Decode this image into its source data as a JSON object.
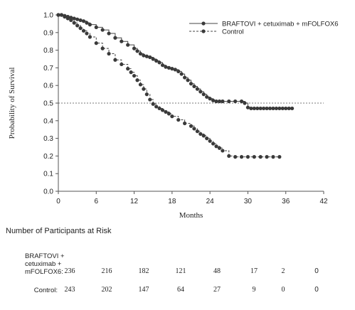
{
  "chart_data": {
    "type": "line",
    "subtype": "kaplan-meier",
    "xlabel": "Months",
    "ylabel": "Probability of Survival",
    "xlim": [
      0,
      42
    ],
    "ylim": [
      0,
      1.0
    ],
    "xticks": [
      0,
      6,
      12,
      18,
      24,
      30,
      36,
      42
    ],
    "yticks": [
      0.0,
      0.1,
      0.2,
      0.3,
      0.4,
      0.5,
      0.6,
      0.7,
      0.8,
      0.9,
      1.0
    ],
    "reference_line": 0.5,
    "legend_position": "top-right",
    "series": [
      {
        "name": "BRAFTOVI + cetuximab + mFOLFOX6",
        "color": "#444444",
        "line_style": "solid",
        "x": [
          0,
          0.5,
          1,
          1.5,
          2,
          2.5,
          3,
          3.5,
          4,
          4.5,
          5,
          6,
          7,
          8,
          9,
          10,
          11,
          12,
          12.5,
          13,
          13.5,
          14,
          14.5,
          15,
          15.5,
          16,
          16.5,
          17,
          17.5,
          18,
          18.5,
          19,
          19.5,
          20,
          20.5,
          21,
          21.5,
          22,
          22.5,
          23,
          23.5,
          24,
          24.5,
          25,
          25.5,
          26,
          27,
          28,
          29,
          29.5,
          30,
          30.5,
          31,
          31.5,
          32,
          32.5,
          33,
          33.5,
          34,
          34.5,
          35,
          35.5,
          36,
          36.5,
          37
        ],
        "y": [
          1.0,
          1.0,
          0.995,
          0.99,
          0.985,
          0.98,
          0.975,
          0.97,
          0.965,
          0.955,
          0.945,
          0.93,
          0.915,
          0.895,
          0.87,
          0.85,
          0.83,
          0.81,
          0.795,
          0.78,
          0.77,
          0.765,
          0.76,
          0.75,
          0.74,
          0.73,
          0.715,
          0.705,
          0.7,
          0.695,
          0.69,
          0.68,
          0.665,
          0.645,
          0.63,
          0.61,
          0.595,
          0.58,
          0.565,
          0.55,
          0.535,
          0.525,
          0.515,
          0.51,
          0.51,
          0.51,
          0.51,
          0.51,
          0.51,
          0.5,
          0.475,
          0.47,
          0.47,
          0.47,
          0.47,
          0.47,
          0.47,
          0.47,
          0.47,
          0.47,
          0.47,
          0.47,
          0.47,
          0.47,
          0.47
        ]
      },
      {
        "name": "Control",
        "color": "#444444",
        "line_style": "dashed",
        "x": [
          0,
          0.5,
          1,
          1.5,
          2,
          2.5,
          3,
          3.5,
          4,
          4.5,
          5,
          6,
          7,
          8,
          9,
          10,
          11,
          11.5,
          12,
          12.5,
          13,
          13.5,
          14,
          14.5,
          15,
          15.5,
          16,
          16.5,
          17,
          17.5,
          18,
          19,
          20,
          21,
          21.5,
          22,
          22.5,
          23,
          23.5,
          24,
          24.5,
          25,
          25.5,
          26,
          27,
          28,
          29,
          30,
          31,
          32,
          33,
          34,
          35
        ],
        "y": [
          1.0,
          1.0,
          0.99,
          0.98,
          0.97,
          0.955,
          0.94,
          0.925,
          0.91,
          0.895,
          0.875,
          0.84,
          0.81,
          0.78,
          0.745,
          0.72,
          0.695,
          0.675,
          0.655,
          0.63,
          0.605,
          0.58,
          0.55,
          0.52,
          0.495,
          0.48,
          0.47,
          0.46,
          0.45,
          0.44,
          0.425,
          0.405,
          0.385,
          0.37,
          0.355,
          0.34,
          0.325,
          0.315,
          0.3,
          0.285,
          0.27,
          0.255,
          0.245,
          0.23,
          0.2,
          0.195,
          0.195,
          0.195,
          0.195,
          0.195,
          0.195,
          0.195,
          0.195
        ]
      }
    ]
  },
  "risk_table": {
    "title": "Number of Participants at Risk",
    "rows": [
      {
        "label": [
          "BRAFTOVI +",
          "cetuximab +",
          "mFOLFOX6:"
        ],
        "values": [
          "236",
          "216",
          "182",
          "121",
          "48",
          "17",
          "2",
          "0"
        ]
      },
      {
        "label": [
          "Control:"
        ],
        "values": [
          "243",
          "202",
          "147",
          "64",
          "27",
          "9",
          "0",
          "0"
        ]
      }
    ]
  }
}
